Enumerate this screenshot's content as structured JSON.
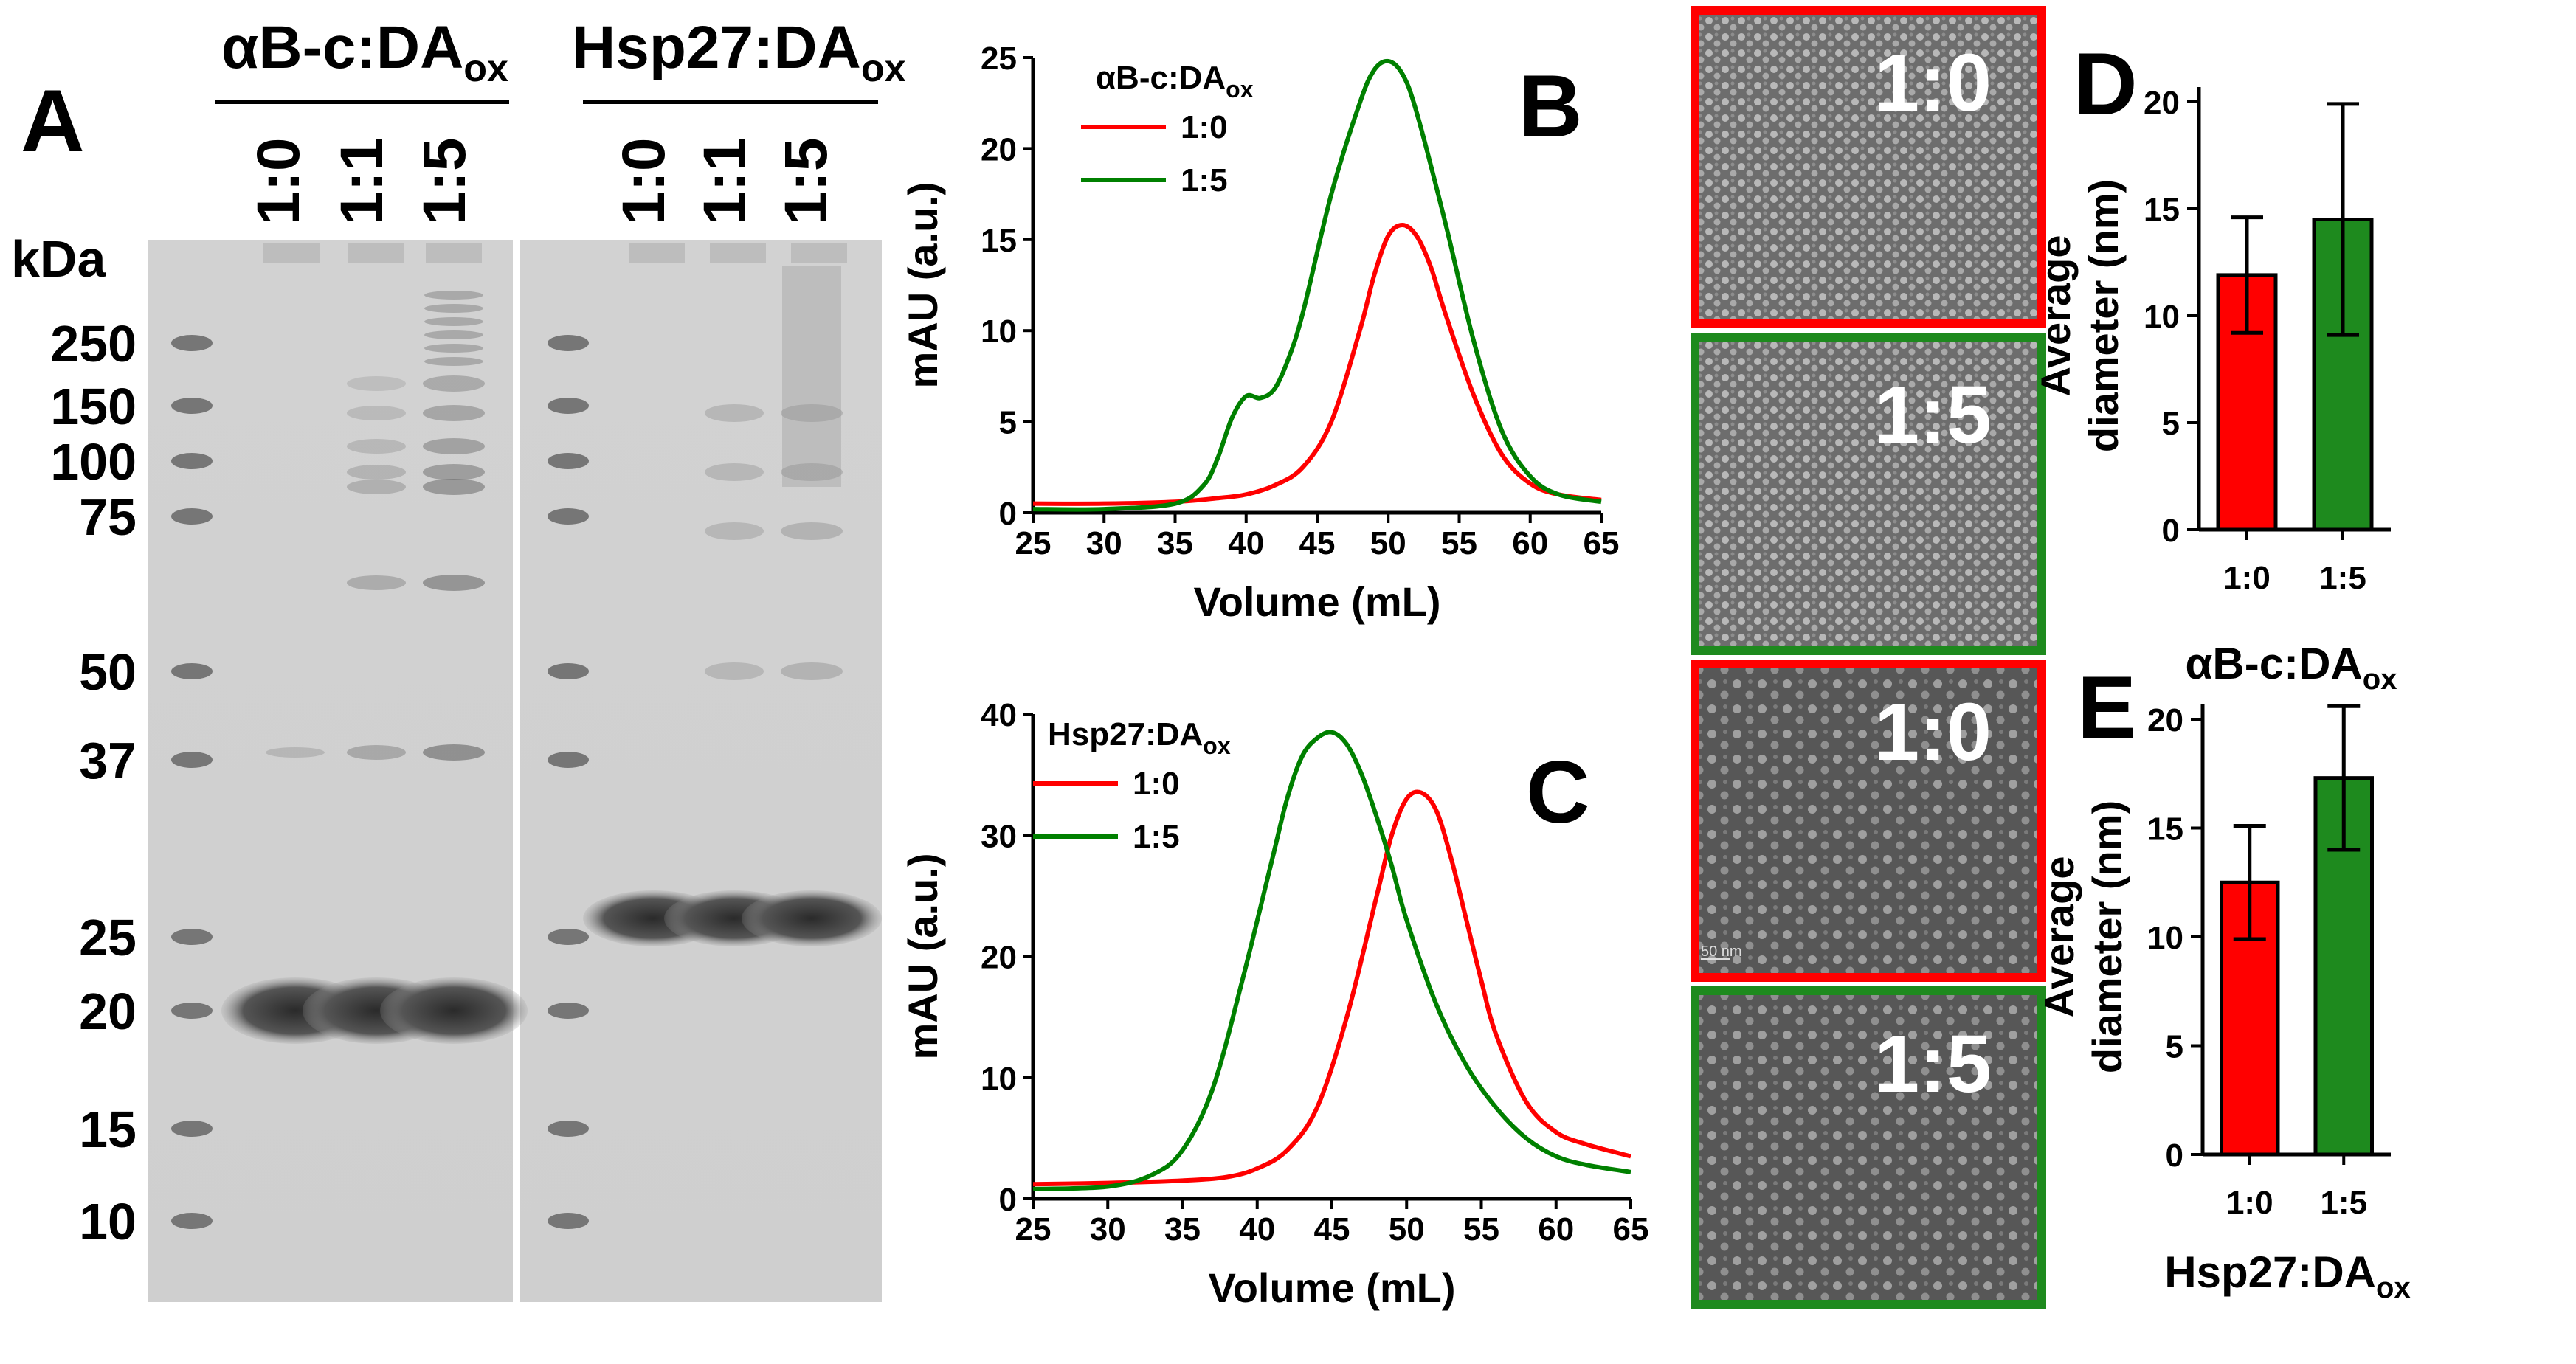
{
  "panels": {
    "A": {
      "letter": "A",
      "group1": {
        "name": "αB-c:DA",
        "sub": "ox",
        "lanes": [
          "1:0",
          "1:1",
          "1:5"
        ]
      },
      "group2": {
        "name": "Hsp27:DA",
        "sub": "ox",
        "lanes": [
          "1:0",
          "1:1",
          "1:5"
        ]
      },
      "unit": "kDa",
      "markers": [
        "250",
        "150",
        "100",
        "75",
        "50",
        "37",
        "25",
        "20",
        "15",
        "10"
      ]
    },
    "B": {
      "letter": "B",
      "legend_title": "αB-c:DA",
      "legend_sub": "ox"
    },
    "C": {
      "letter": "C",
      "legend_title": "Hsp27:DA",
      "legend_sub": "ox"
    },
    "D": {
      "letter": "D",
      "group": "αB-c:DA",
      "group_sub": "ox"
    },
    "E": {
      "letter": "E",
      "group": "Hsp27:DA",
      "group_sub": "ox"
    },
    "tem": {
      "labels": [
        "1:0",
        "1:5",
        "1:0",
        "1:5"
      ],
      "scale_text": "50 nm"
    }
  },
  "colors": {
    "red": "#ff0000",
    "green": "#008000",
    "bar_red": "#ff0000",
    "bar_green": "#1e8a1e"
  },
  "chart_data": [
    {
      "id": "B",
      "type": "line",
      "xlabel": "Volume (mL)",
      "ylabel": "mAU (a.u.)",
      "xlim": [
        25,
        65
      ],
      "ylim": [
        0,
        25
      ],
      "xticks": [
        25,
        30,
        35,
        40,
        45,
        50,
        55,
        60,
        65
      ],
      "yticks": [
        0,
        5,
        10,
        15,
        20,
        25
      ],
      "series": [
        {
          "name": "1:0",
          "color": "#ff0000",
          "x": [
            25,
            30,
            35,
            38,
            40,
            42,
            44,
            46,
            48,
            49,
            50,
            51,
            52,
            53,
            54,
            56,
            58,
            60,
            62,
            65
          ],
          "y": [
            0.5,
            0.5,
            0.6,
            0.8,
            1.0,
            1.5,
            2.5,
            5,
            10,
            13,
            15.2,
            15.8,
            15.2,
            13.5,
            11,
            6.5,
            3.2,
            1.6,
            1.0,
            0.7
          ]
        },
        {
          "name": "1:5",
          "color": "#008000",
          "x": [
            25,
            30,
            35,
            37,
            38,
            39,
            40,
            41,
            42,
            43,
            44,
            46,
            48,
            49,
            50,
            51,
            52,
            54,
            56,
            58,
            60,
            62,
            65
          ],
          "y": [
            0.2,
            0.2,
            0.5,
            1.5,
            3,
            5.2,
            6.4,
            6.3,
            6.8,
            8.5,
            11,
            17.5,
            22.5,
            24.3,
            24.8,
            24.1,
            22,
            16,
            9.5,
            4.5,
            2,
            1,
            0.6
          ]
        }
      ]
    },
    {
      "id": "C",
      "type": "line",
      "xlabel": "Volume (mL)",
      "ylabel": "mAU (a.u.)",
      "xlim": [
        25,
        65
      ],
      "ylim": [
        0,
        40
      ],
      "xticks": [
        25,
        30,
        35,
        40,
        45,
        50,
        55,
        60,
        65
      ],
      "yticks": [
        0,
        10,
        20,
        30,
        40
      ],
      "series": [
        {
          "name": "1:0",
          "color": "#ff0000",
          "x": [
            25,
            30,
            35,
            38,
            40,
            42,
            44,
            46,
            48,
            49,
            50,
            51,
            52,
            53,
            54,
            55,
            56,
            58,
            60,
            62,
            65
          ],
          "y": [
            1.2,
            1.3,
            1.5,
            1.8,
            2.5,
            4,
            7.5,
            15,
            25,
            30,
            33,
            33.5,
            32,
            28,
            23,
            18,
            13.5,
            8,
            5.5,
            4.5,
            3.5
          ]
        },
        {
          "name": "1:5",
          "color": "#008000",
          "x": [
            25,
            30,
            33,
            35,
            37,
            39,
            41,
            42,
            43,
            44,
            45,
            46,
            47,
            48,
            49,
            50,
            52,
            54,
            56,
            58,
            60,
            62,
            65
          ],
          "y": [
            0.8,
            1,
            2,
            4,
            9,
            18,
            28,
            33,
            36.5,
            38,
            38.5,
            37.5,
            35,
            31.5,
            27.5,
            23,
            16,
            11,
            7.5,
            5,
            3.5,
            2.8,
            2.2
          ]
        }
      ]
    },
    {
      "id": "D",
      "type": "bar",
      "ylabel": "Average diameter (nm)",
      "ylim": [
        0,
        20
      ],
      "yticks": [
        0,
        5,
        10,
        15,
        20
      ],
      "categories": [
        "1:0",
        "1:5"
      ],
      "values": [
        11.9,
        14.5
      ],
      "errors": [
        2.7,
        5.4
      ]
    },
    {
      "id": "E",
      "type": "bar",
      "ylabel": "Average diameter (nm)",
      "ylim": [
        0,
        20
      ],
      "yticks": [
        0,
        5,
        10,
        15,
        20
      ],
      "categories": [
        "1:0",
        "1:5"
      ],
      "values": [
        12.5,
        17.3
      ],
      "errors": [
        2.6,
        3.3
      ]
    }
  ]
}
